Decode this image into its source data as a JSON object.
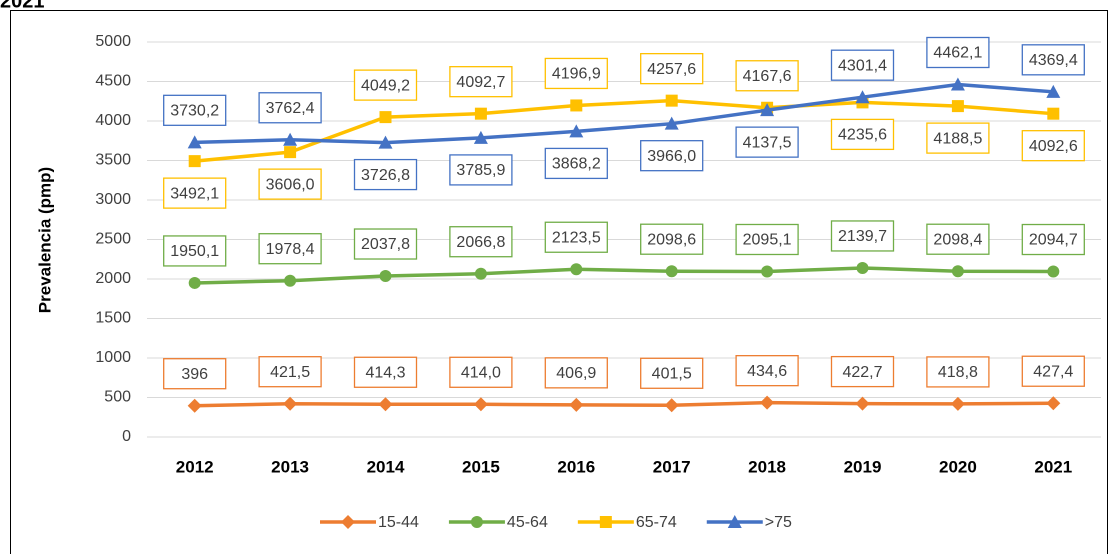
{
  "chart_data": {
    "type": "line",
    "title": "2021",
    "y_label": "Prevalencia (pmp)",
    "categories": [
      "2012",
      "2013",
      "2014",
      "2015",
      "2016",
      "2017",
      "2018",
      "2019",
      "2020",
      "2021"
    ],
    "ylim": [
      0,
      5000
    ],
    "yticks": [
      0,
      500,
      1000,
      1500,
      2000,
      2500,
      3000,
      3500,
      4000,
      4500,
      5000
    ],
    "grid": true,
    "legend": "bottom",
    "series": [
      {
        "name": "15-44",
        "color": "#ED7D31",
        "marker": "diamond",
        "values": [
          396,
          421.5,
          414.3,
          414.0,
          406.9,
          401.5,
          434.6,
          422.7,
          418.8,
          427.4
        ],
        "value_labels": [
          "396",
          "421,5",
          "414,3",
          "414,0",
          "406,9",
          "401,5",
          "434,6",
          "422,7",
          "418,8",
          "427,4"
        ]
      },
      {
        "name": "45-64",
        "color": "#70AD47",
        "marker": "circle",
        "values": [
          1950.1,
          1978.4,
          2037.8,
          2066.8,
          2123.5,
          2098.6,
          2095.1,
          2139.7,
          2098.4,
          2094.7
        ],
        "value_labels": [
          "1950,1",
          "1978,4",
          "2037,8",
          "2066,8",
          "2123,5",
          "2098,6",
          "2095,1",
          "2139,7",
          "2098,4",
          "2094,7"
        ]
      },
      {
        "name": "65-74",
        "color": "#FFC000",
        "marker": "square",
        "values": [
          3492.1,
          3606.0,
          4049.2,
          4092.7,
          4196.9,
          4257.6,
          4167.6,
          4235.6,
          4188.5,
          4092.6
        ],
        "value_labels": [
          "3492,1",
          "3606,0",
          "4049,2",
          "4092,7",
          "4196,9",
          "4257,6",
          "4167,6",
          "4235,6",
          "4188,5",
          "4092,6"
        ]
      },
      {
        "name": ">75",
        "color": "#4472C4",
        "marker": "triangle",
        "values": [
          3730.2,
          3762.4,
          3726.8,
          3785.9,
          3868.2,
          3966.0,
          4137.5,
          4301.4,
          4462.1,
          4369.4
        ],
        "value_labels": [
          "3730,2",
          "3762,4",
          "3726,8",
          "3785,9",
          "3868,2",
          "3966,0",
          "4137,5",
          "4301,4",
          "4462,1",
          "4369,4"
        ]
      }
    ]
  }
}
